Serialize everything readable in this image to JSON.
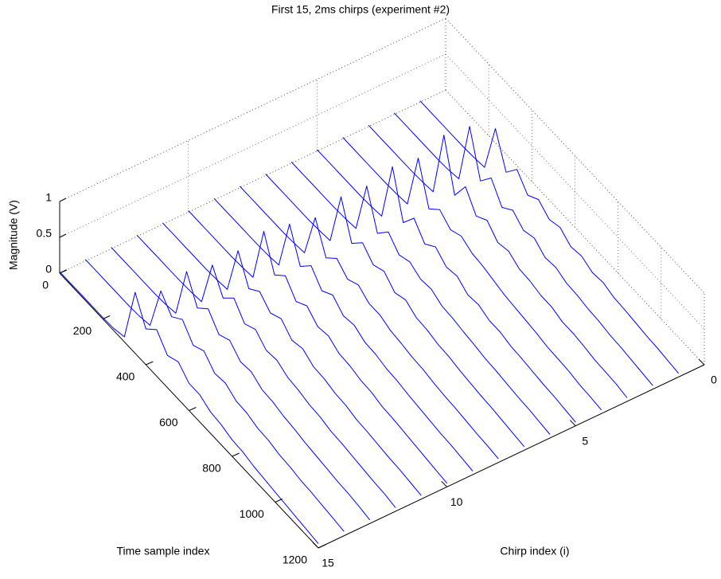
{
  "chart_data": {
    "type": "line3d",
    "title": "First 15, 2ms chirps (experiment #2)",
    "xlabel": "Time sample index",
    "ylabel": "Chirp index (i)",
    "zlabel": "Magnitude (V)",
    "xlim": [
      0,
      1200
    ],
    "xticks": [
      0,
      200,
      400,
      600,
      800,
      1000,
      1200
    ],
    "ylim": [
      0,
      15
    ],
    "yticks": [
      0,
      5,
      10,
      15
    ],
    "zlim": [
      0,
      1
    ],
    "zticks": [
      0,
      0.5,
      1
    ],
    "grid": true,
    "color": "#0000ff",
    "x": [
      0,
      50,
      100,
      150,
      200,
      250,
      300,
      350,
      400,
      450,
      500,
      550,
      600,
      650,
      700,
      750,
      800,
      850,
      900,
      950,
      1000,
      1050,
      1100,
      1150,
      1200
    ],
    "chirps": [
      1,
      2,
      3,
      4,
      5,
      6,
      7,
      8,
      9,
      10,
      11,
      12,
      13,
      14,
      15
    ],
    "series": [
      {
        "values": [
          0.02,
          0.02,
          0.02,
          0.02,
          0.02,
          0.03,
          0.05,
          0.75,
          0.3,
          0.5,
          0.3,
          0.4,
          0.28,
          0.33,
          0.22,
          0.25,
          0.18,
          0.2,
          0.15,
          0.14,
          0.12,
          0.1,
          0.09,
          0.07,
          0.05
        ]
      },
      {
        "values": [
          0.02,
          0.02,
          0.02,
          0.02,
          0.02,
          0.03,
          0.06,
          0.95,
          0.35,
          0.55,
          0.3,
          0.42,
          0.3,
          0.35,
          0.24,
          0.26,
          0.2,
          0.19,
          0.16,
          0.15,
          0.12,
          0.11,
          0.09,
          0.07,
          0.05
        ]
      },
      {
        "values": [
          0.02,
          0.02,
          0.02,
          0.02,
          0.02,
          0.03,
          0.05,
          1.0,
          0.32,
          0.6,
          0.35,
          0.45,
          0.3,
          0.34,
          0.25,
          0.24,
          0.2,
          0.2,
          0.15,
          0.15,
          0.13,
          0.1,
          0.09,
          0.08,
          0.05
        ]
      },
      {
        "values": [
          0.02,
          0.02,
          0.02,
          0.02,
          0.02,
          0.03,
          0.05,
          0.85,
          0.3,
          0.45,
          0.33,
          0.4,
          0.32,
          0.3,
          0.26,
          0.22,
          0.2,
          0.18,
          0.16,
          0.13,
          0.12,
          0.11,
          0.08,
          0.07,
          0.05
        ]
      },
      {
        "values": [
          0.02,
          0.02,
          0.02,
          0.02,
          0.02,
          0.03,
          0.05,
          0.9,
          0.28,
          0.5,
          0.3,
          0.42,
          0.3,
          0.33,
          0.23,
          0.25,
          0.19,
          0.19,
          0.15,
          0.14,
          0.12,
          0.1,
          0.09,
          0.07,
          0.05
        ]
      },
      {
        "values": [
          0.02,
          0.02,
          0.02,
          0.02,
          0.02,
          0.03,
          0.05,
          0.8,
          0.3,
          0.48,
          0.32,
          0.38,
          0.3,
          0.32,
          0.24,
          0.23,
          0.2,
          0.18,
          0.15,
          0.14,
          0.12,
          0.1,
          0.09,
          0.07,
          0.05
        ]
      },
      {
        "values": [
          0.02,
          0.02,
          0.02,
          0.02,
          0.02,
          0.03,
          0.05,
          0.82,
          0.33,
          0.5,
          0.35,
          0.42,
          0.28,
          0.34,
          0.25,
          0.24,
          0.2,
          0.19,
          0.16,
          0.14,
          0.12,
          0.11,
          0.09,
          0.07,
          0.05
        ]
      },
      {
        "values": [
          0.02,
          0.02,
          0.02,
          0.02,
          0.02,
          0.03,
          0.05,
          0.7,
          0.3,
          0.45,
          0.32,
          0.4,
          0.3,
          0.3,
          0.24,
          0.22,
          0.19,
          0.18,
          0.15,
          0.13,
          0.12,
          0.1,
          0.08,
          0.07,
          0.05
        ]
      },
      {
        "values": [
          0.02,
          0.02,
          0.02,
          0.02,
          0.02,
          0.03,
          0.05,
          0.78,
          0.35,
          0.52,
          0.33,
          0.43,
          0.3,
          0.33,
          0.25,
          0.24,
          0.2,
          0.19,
          0.16,
          0.14,
          0.12,
          0.1,
          0.09,
          0.07,
          0.05
        ]
      },
      {
        "values": [
          0.02,
          0.02,
          0.02,
          0.02,
          0.02,
          0.03,
          0.05,
          0.85,
          0.4,
          0.55,
          0.35,
          0.45,
          0.32,
          0.35,
          0.26,
          0.25,
          0.21,
          0.2,
          0.16,
          0.15,
          0.13,
          0.11,
          0.09,
          0.07,
          0.05
        ]
      },
      {
        "values": [
          0.02,
          0.02,
          0.02,
          0.02,
          0.02,
          0.03,
          0.05,
          0.75,
          0.38,
          0.5,
          0.36,
          0.44,
          0.3,
          0.34,
          0.25,
          0.24,
          0.2,
          0.19,
          0.15,
          0.14,
          0.12,
          0.1,
          0.09,
          0.07,
          0.05
        ]
      },
      {
        "values": [
          0.02,
          0.02,
          0.02,
          0.02,
          0.02,
          0.03,
          0.05,
          0.72,
          0.42,
          0.58,
          0.38,
          0.46,
          0.33,
          0.35,
          0.27,
          0.25,
          0.21,
          0.2,
          0.16,
          0.15,
          0.13,
          0.11,
          0.09,
          0.08,
          0.05
        ]
      },
      {
        "values": [
          0.02,
          0.02,
          0.02,
          0.02,
          0.02,
          0.03,
          0.06,
          0.8,
          0.45,
          0.6,
          0.4,
          0.48,
          0.34,
          0.36,
          0.27,
          0.26,
          0.22,
          0.2,
          0.17,
          0.15,
          0.13,
          0.11,
          0.1,
          0.08,
          0.05
        ]
      },
      {
        "values": [
          0.02,
          0.02,
          0.02,
          0.02,
          0.02,
          0.03,
          0.06,
          0.7,
          0.5,
          0.62,
          0.42,
          0.5,
          0.35,
          0.37,
          0.28,
          0.27,
          0.22,
          0.21,
          0.17,
          0.16,
          0.13,
          0.12,
          0.1,
          0.08,
          0.06
        ]
      },
      {
        "values": [
          0.02,
          0.02,
          0.02,
          0.02,
          0.02,
          0.03,
          0.07,
          0.85,
          0.5,
          0.65,
          0.45,
          0.52,
          0.38,
          0.38,
          0.3,
          0.28,
          0.23,
          0.22,
          0.18,
          0.16,
          0.14,
          0.12,
          0.1,
          0.08,
          0.06
        ]
      }
    ]
  }
}
